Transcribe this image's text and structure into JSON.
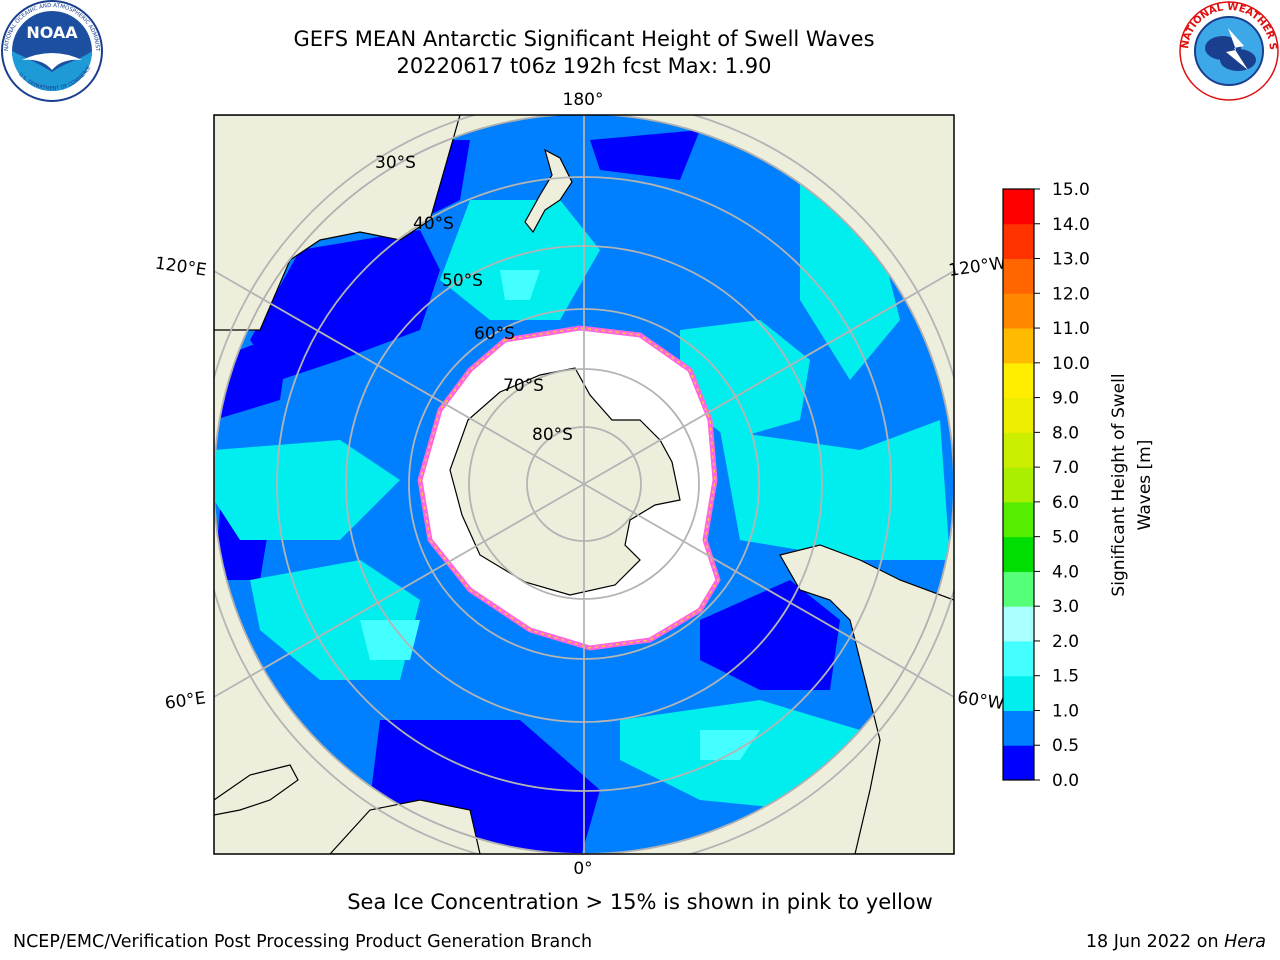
{
  "title": {
    "line1": "GEFS MEAN Antarctic Significant Height of Swell Waves",
    "line2": "20220617 t06z 192h fcst   Max: 1.90"
  },
  "map": {
    "projection": "south-polar-stereographic",
    "lon_labels": [
      "180°",
      "120°E",
      "120°W",
      "60°E",
      "60°W",
      "0°"
    ],
    "lat_labels": [
      "30°S",
      "40°S",
      "50°S",
      "60°S",
      "70°S",
      "80°S"
    ],
    "colors": {
      "land": "#eeeedd",
      "ice": "#ffffff",
      "ice_edge": [
        "#ff66dd",
        "#ffb0f0",
        "#ffcc33"
      ],
      "graticule": "#b4b4b4"
    }
  },
  "colorbar": {
    "label_line1": "Significant Height of Swell",
    "label_line2": "Waves [m]",
    "ticks": [
      "0.0",
      "0.5",
      "1.0",
      "1.5",
      "2.0",
      "3.0",
      "4.0",
      "5.0",
      "6.0",
      "7.0",
      "8.0",
      "9.0",
      "10.0",
      "11.0",
      "12.0",
      "13.0",
      "14.0",
      "15.0"
    ],
    "colors": [
      "#0000ff",
      "#0080ff",
      "#00eeee",
      "#44ffff",
      "#aaffff",
      "#55ff77",
      "#00dd00",
      "#55ee00",
      "#aaee00",
      "#ccee00",
      "#eeee00",
      "#ffee00",
      "#ffbb00",
      "#ff8800",
      "#ff6600",
      "#ff3300",
      "#ff0000"
    ]
  },
  "note": "Sea Ice Concentration > 15% is shown in pink to yellow",
  "footer": {
    "left": "NCEP/EMC/Verification Post Processing Product Generation Branch",
    "right_prefix": "18 Jun 2022 on",
    "right_host": "Hera"
  },
  "logos": {
    "noaa_text": "NOAA",
    "noaa_ring_text": "NATIONAL OCEANIC AND ATMOSPHERIC ADMINISTRATION",
    "noaa_bottom_text": "U.S. DEPARTMENT OF COMMERCE",
    "nws_ring_text": "NATIONAL WEATHER SERVICE"
  }
}
